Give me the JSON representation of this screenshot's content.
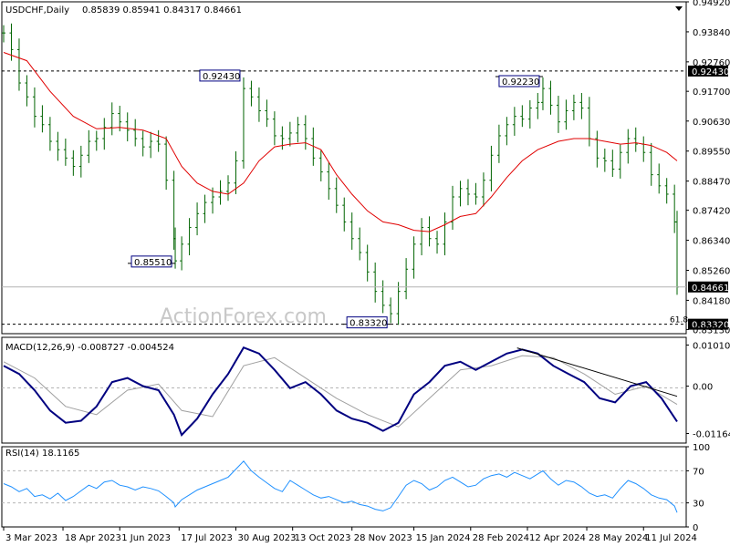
{
  "chart_data": [
    {
      "type": "candlestick",
      "panel": "price",
      "title": "USDCHF,Daily",
      "ohlc_label": "0.85839 0.85941 0.84317 0.84661",
      "watermark": "ActionForex.com",
      "ylim": [
        0.8298,
        0.9492
      ],
      "y_ticks": [
        "0.94920",
        "0.93840",
        "0.92760",
        "0.91700",
        "0.90630",
        "0.89550",
        "0.88470",
        "0.87420",
        "0.86340",
        "0.85260",
        "0.84180",
        "0.83130"
      ],
      "current_price": "0.84661",
      "current_price_color": "#000000",
      "key_levels": [
        {
          "value": "0.92430",
          "line_style": "dashed"
        },
        {
          "value": "0.83320",
          "line_style": "dashed",
          "annotation": "61.8"
        }
      ],
      "swing_labels": [
        {
          "text": "0.92430",
          "date": "2023-09-05",
          "type": "high"
        },
        {
          "text": "0.85510",
          "date": "2023-07-14",
          "type": "low"
        },
        {
          "text": "0.83320",
          "date": "2023-12-28",
          "type": "low"
        },
        {
          "text": "0.92230",
          "date": "2024-04-24",
          "type": "high"
        }
      ],
      "x_labels": [
        "3 Mar 2023",
        "18 Apr 2023",
        "1 Jun 2023",
        "17 Jul 2023",
        "30 Aug 2023",
        "13 Oct 2023",
        "28 Nov 2023",
        "15 Jan 2024",
        "28 Feb 2024",
        "12 Apr 2024",
        "28 May 2024",
        "11 Jul 2024"
      ],
      "bar_color": "#006400",
      "ma_color": "#e00000",
      "close_series": [
        [
          "2023-03-03",
          0.938
        ],
        [
          "2023-03-09",
          0.932
        ],
        [
          "2023-03-15",
          0.92
        ],
        [
          "2023-03-21",
          0.915
        ],
        [
          "2023-03-27",
          0.908
        ],
        [
          "2023-04-02",
          0.905
        ],
        [
          "2023-04-08",
          0.899
        ],
        [
          "2023-04-14",
          0.896
        ],
        [
          "2023-04-20",
          0.893
        ],
        [
          "2023-04-26",
          0.89
        ],
        [
          "2023-05-02",
          0.894
        ],
        [
          "2023-05-08",
          0.899
        ],
        [
          "2023-05-14",
          0.9
        ],
        [
          "2023-05-20",
          0.904
        ],
        [
          "2023-05-26",
          0.909
        ],
        [
          "2023-06-01",
          0.906
        ],
        [
          "2023-06-07",
          0.903
        ],
        [
          "2023-06-13",
          0.9
        ],
        [
          "2023-06-19",
          0.897
        ],
        [
          "2023-06-25",
          0.899
        ],
        [
          "2023-07-01",
          0.898
        ],
        [
          "2023-07-07",
          0.885
        ],
        [
          "2023-07-13",
          0.864
        ],
        [
          "2023-07-14",
          0.856
        ],
        [
          "2023-07-19",
          0.862
        ],
        [
          "2023-07-25",
          0.868
        ],
        [
          "2023-07-31",
          0.873
        ],
        [
          "2023-08-06",
          0.877
        ],
        [
          "2023-08-12",
          0.879
        ],
        [
          "2023-08-18",
          0.881
        ],
        [
          "2023-08-24",
          0.884
        ],
        [
          "2023-08-30",
          0.892
        ],
        [
          "2023-09-05",
          0.918
        ],
        [
          "2023-09-11",
          0.915
        ],
        [
          "2023-09-17",
          0.91
        ],
        [
          "2023-09-23",
          0.907
        ],
        [
          "2023-09-29",
          0.901
        ],
        [
          "2023-10-05",
          0.9
        ],
        [
          "2023-10-11",
          0.902
        ],
        [
          "2023-10-17",
          0.905
        ],
        [
          "2023-10-23",
          0.9
        ],
        [
          "2023-10-29",
          0.893
        ],
        [
          "2023-11-04",
          0.888
        ],
        [
          "2023-11-10",
          0.882
        ],
        [
          "2023-11-16",
          0.876
        ],
        [
          "2023-11-22",
          0.87
        ],
        [
          "2023-11-28",
          0.864
        ],
        [
          "2023-12-04",
          0.859
        ],
        [
          "2023-12-10",
          0.852
        ],
        [
          "2023-12-16",
          0.845
        ],
        [
          "2023-12-22",
          0.84
        ],
        [
          "2023-12-28",
          0.837
        ],
        [
          "2024-01-03",
          0.845
        ],
        [
          "2024-01-09",
          0.853
        ],
        [
          "2024-01-15",
          0.862
        ],
        [
          "2024-01-21",
          0.868
        ],
        [
          "2024-01-27",
          0.864
        ],
        [
          "2024-02-02",
          0.862
        ],
        [
          "2024-02-08",
          0.87
        ],
        [
          "2024-02-14",
          0.879
        ],
        [
          "2024-02-20",
          0.882
        ],
        [
          "2024-02-26",
          0.88
        ],
        [
          "2024-03-03",
          0.879
        ],
        [
          "2024-03-09",
          0.885
        ],
        [
          "2024-03-15",
          0.894
        ],
        [
          "2024-03-21",
          0.901
        ],
        [
          "2024-03-27",
          0.905
        ],
        [
          "2024-04-02",
          0.908
        ],
        [
          "2024-04-08",
          0.907
        ],
        [
          "2024-04-14",
          0.911
        ],
        [
          "2024-04-20",
          0.913
        ],
        [
          "2024-04-24",
          0.918
        ],
        [
          "2024-04-30",
          0.912
        ],
        [
          "2024-05-06",
          0.906
        ],
        [
          "2024-05-12",
          0.91
        ],
        [
          "2024-05-18",
          0.913
        ],
        [
          "2024-05-24",
          0.911
        ],
        [
          "2024-05-30",
          0.9
        ],
        [
          "2024-06-05",
          0.893
        ],
        [
          "2024-06-11",
          0.892
        ],
        [
          "2024-06-17",
          0.889
        ],
        [
          "2024-06-23",
          0.895
        ],
        [
          "2024-06-29",
          0.9
        ],
        [
          "2024-07-05",
          0.898
        ],
        [
          "2024-07-11",
          0.895
        ],
        [
          "2024-07-17",
          0.887
        ],
        [
          "2024-07-23",
          0.883
        ],
        [
          "2024-07-29",
          0.88
        ],
        [
          "2024-08-04",
          0.87
        ],
        [
          "2024-08-06",
          0.8466
        ]
      ],
      "ma_series": [
        [
          "2023-03-03",
          0.931
        ],
        [
          "2023-03-21",
          0.928
        ],
        [
          "2023-04-08",
          0.917
        ],
        [
          "2023-04-26",
          0.908
        ],
        [
          "2023-05-14",
          0.9035
        ],
        [
          "2023-06-01",
          0.904
        ],
        [
          "2023-06-19",
          0.903
        ],
        [
          "2023-07-07",
          0.9
        ],
        [
          "2023-07-19",
          0.89
        ],
        [
          "2023-07-31",
          0.884
        ],
        [
          "2023-08-12",
          0.881
        ],
        [
          "2023-08-24",
          0.88
        ],
        [
          "2023-09-05",
          0.884
        ],
        [
          "2023-09-17",
          0.892
        ],
        [
          "2023-09-29",
          0.897
        ],
        [
          "2023-10-11",
          0.898
        ],
        [
          "2023-10-23",
          0.8985
        ],
        [
          "2023-11-04",
          0.896
        ],
        [
          "2023-11-16",
          0.887
        ],
        [
          "2023-11-28",
          0.88
        ],
        [
          "2023-12-10",
          0.874
        ],
        [
          "2023-12-22",
          0.87
        ],
        [
          "2024-01-03",
          0.869
        ],
        [
          "2024-01-15",
          0.867
        ],
        [
          "2024-01-27",
          0.8665
        ],
        [
          "2024-02-08",
          0.869
        ],
        [
          "2024-02-20",
          0.872
        ],
        [
          "2024-03-03",
          0.873
        ],
        [
          "2024-03-15",
          0.879
        ],
        [
          "2024-03-27",
          0.886
        ],
        [
          "2024-04-08",
          0.892
        ],
        [
          "2024-04-20",
          0.896
        ],
        [
          "2024-05-06",
          0.899
        ],
        [
          "2024-05-18",
          0.9
        ],
        [
          "2024-05-30",
          0.9
        ],
        [
          "2024-06-11",
          0.899
        ],
        [
          "2024-06-23",
          0.898
        ],
        [
          "2024-07-05",
          0.8985
        ],
        [
          "2024-07-17",
          0.8975
        ],
        [
          "2024-07-29",
          0.895
        ],
        [
          "2024-08-06",
          0.892
        ]
      ]
    },
    {
      "type": "line",
      "panel": "macd",
      "title": "MACD(12,26,9) -0.008727 -0.004524",
      "ylim": [
        -0.014,
        0.012
      ],
      "y_ticks": [
        "0.010101",
        "0.00",
        "-0.011645"
      ],
      "macd_color": "#000080",
      "signal_color": "#a0a0a0",
      "trendline": {
        "from": [
          "2024-04-04",
          0.0094
        ],
        "to": [
          "2024-08-06",
          -0.0025
        ]
      },
      "macd_series": [
        [
          "2023-03-03",
          0.005
        ],
        [
          "2023-03-15",
          0.003
        ],
        [
          "2023-03-27",
          -0.001
        ],
        [
          "2023-04-08",
          -0.006
        ],
        [
          "2023-04-20",
          -0.009
        ],
        [
          "2023-05-02",
          -0.0085
        ],
        [
          "2023-05-14",
          -0.005
        ],
        [
          "2023-05-26",
          0.001
        ],
        [
          "2023-06-07",
          0.002
        ],
        [
          "2023-06-19",
          0.0
        ],
        [
          "2023-07-01",
          -0.001
        ],
        [
          "2023-07-13",
          -0.007
        ],
        [
          "2023-07-19",
          -0.012
        ],
        [
          "2023-07-31",
          -0.008
        ],
        [
          "2023-08-12",
          -0.002
        ],
        [
          "2023-08-24",
          0.003
        ],
        [
          "2023-09-05",
          0.0095
        ],
        [
          "2023-09-17",
          0.008
        ],
        [
          "2023-09-29",
          0.004
        ],
        [
          "2023-10-11",
          -0.0005
        ],
        [
          "2023-10-23",
          0.001
        ],
        [
          "2023-11-04",
          -0.002
        ],
        [
          "2023-11-16",
          -0.006
        ],
        [
          "2023-11-28",
          -0.008
        ],
        [
          "2023-12-10",
          -0.009
        ],
        [
          "2023-12-22",
          -0.011
        ],
        [
          "2024-01-03",
          -0.009
        ],
        [
          "2024-01-15",
          -0.002
        ],
        [
          "2024-01-27",
          0.001
        ],
        [
          "2024-02-08",
          0.005
        ],
        [
          "2024-02-20",
          0.006
        ],
        [
          "2024-03-03",
          0.004
        ],
        [
          "2024-03-15",
          0.006
        ],
        [
          "2024-03-27",
          0.008
        ],
        [
          "2024-04-08",
          0.009
        ],
        [
          "2024-04-20",
          0.008
        ],
        [
          "2024-05-02",
          0.005
        ],
        [
          "2024-05-14",
          0.003
        ],
        [
          "2024-05-26",
          0.001
        ],
        [
          "2024-06-07",
          -0.003
        ],
        [
          "2024-06-19",
          -0.004
        ],
        [
          "2024-07-01",
          0.0
        ],
        [
          "2024-07-13",
          0.001
        ],
        [
          "2024-07-25",
          -0.003
        ],
        [
          "2024-08-06",
          -0.0087
        ]
      ],
      "signal_series": [
        [
          "2023-03-03",
          0.006
        ],
        [
          "2023-03-27",
          0.002
        ],
        [
          "2023-04-20",
          -0.005
        ],
        [
          "2023-05-14",
          -0.007
        ],
        [
          "2023-06-07",
          -0.001
        ],
        [
          "2023-07-01",
          0.0005
        ],
        [
          "2023-07-19",
          -0.006
        ],
        [
          "2023-08-12",
          -0.0075
        ],
        [
          "2023-09-05",
          0.005
        ],
        [
          "2023-09-29",
          0.007
        ],
        [
          "2023-10-23",
          0.002
        ],
        [
          "2023-11-16",
          -0.003
        ],
        [
          "2023-12-10",
          -0.007
        ],
        [
          "2024-01-03",
          -0.01
        ],
        [
          "2024-01-27",
          -0.003
        ],
        [
          "2024-02-20",
          0.004
        ],
        [
          "2024-03-15",
          0.005
        ],
        [
          "2024-04-08",
          0.0075
        ],
        [
          "2024-05-02",
          0.007
        ],
        [
          "2024-05-26",
          0.003
        ],
        [
          "2024-06-19",
          -0.002
        ],
        [
          "2024-07-13",
          0.0
        ],
        [
          "2024-08-06",
          -0.0045
        ]
      ]
    },
    {
      "type": "line",
      "panel": "rsi",
      "title": "RSI(14) 18.1165",
      "ylim": [
        0,
        100
      ],
      "y_ticks": [
        "100",
        "70",
        "30",
        "0"
      ],
      "reference_levels": [
        70,
        30
      ],
      "rsi_color": "#1e90ff",
      "rsi_series": [
        [
          "2023-03-03",
          54
        ],
        [
          "2023-03-09",
          50
        ],
        [
          "2023-03-15",
          44
        ],
        [
          "2023-03-21",
          48
        ],
        [
          "2023-03-27",
          38
        ],
        [
          "2023-04-02",
          40
        ],
        [
          "2023-04-08",
          35
        ],
        [
          "2023-04-14",
          42
        ],
        [
          "2023-04-20",
          33
        ],
        [
          "2023-04-26",
          38
        ],
        [
          "2023-05-02",
          45
        ],
        [
          "2023-05-08",
          52
        ],
        [
          "2023-05-14",
          48
        ],
        [
          "2023-05-20",
          56
        ],
        [
          "2023-05-26",
          58
        ],
        [
          "2023-06-01",
          52
        ],
        [
          "2023-06-07",
          50
        ],
        [
          "2023-06-13",
          46
        ],
        [
          "2023-06-19",
          50
        ],
        [
          "2023-06-25",
          48
        ],
        [
          "2023-07-01",
          45
        ],
        [
          "2023-07-07",
          38
        ],
        [
          "2023-07-13",
          30
        ],
        [
          "2023-07-14",
          25
        ],
        [
          "2023-07-19",
          34
        ],
        [
          "2023-07-25",
          40
        ],
        [
          "2023-07-31",
          46
        ],
        [
          "2023-08-06",
          50
        ],
        [
          "2023-08-12",
          54
        ],
        [
          "2023-08-18",
          58
        ],
        [
          "2023-08-24",
          62
        ],
        [
          "2023-08-30",
          72
        ],
        [
          "2023-09-05",
          82
        ],
        [
          "2023-09-11",
          70
        ],
        [
          "2023-09-17",
          62
        ],
        [
          "2023-09-23",
          55
        ],
        [
          "2023-09-29",
          48
        ],
        [
          "2023-10-05",
          44
        ],
        [
          "2023-10-11",
          58
        ],
        [
          "2023-10-17",
          52
        ],
        [
          "2023-10-23",
          46
        ],
        [
          "2023-10-29",
          40
        ],
        [
          "2023-11-04",
          36
        ],
        [
          "2023-11-10",
          38
        ],
        [
          "2023-11-16",
          34
        ],
        [
          "2023-11-22",
          30
        ],
        [
          "2023-11-28",
          32
        ],
        [
          "2023-12-04",
          28
        ],
        [
          "2023-12-10",
          26
        ],
        [
          "2023-12-16",
          22
        ],
        [
          "2023-12-22",
          20
        ],
        [
          "2023-12-28",
          24
        ],
        [
          "2024-01-03",
          38
        ],
        [
          "2024-01-09",
          52
        ],
        [
          "2024-01-15",
          58
        ],
        [
          "2024-01-21",
          54
        ],
        [
          "2024-01-27",
          46
        ],
        [
          "2024-02-02",
          50
        ],
        [
          "2024-02-08",
          58
        ],
        [
          "2024-02-14",
          62
        ],
        [
          "2024-02-20",
          56
        ],
        [
          "2024-02-26",
          50
        ],
        [
          "2024-03-03",
          52
        ],
        [
          "2024-03-09",
          60
        ],
        [
          "2024-03-15",
          64
        ],
        [
          "2024-03-21",
          66
        ],
        [
          "2024-03-27",
          62
        ],
        [
          "2024-04-02",
          68
        ],
        [
          "2024-04-08",
          64
        ],
        [
          "2024-04-14",
          60
        ],
        [
          "2024-04-20",
          66
        ],
        [
          "2024-04-24",
          70
        ],
        [
          "2024-04-30",
          60
        ],
        [
          "2024-05-06",
          52
        ],
        [
          "2024-05-12",
          58
        ],
        [
          "2024-05-18",
          56
        ],
        [
          "2024-05-24",
          50
        ],
        [
          "2024-05-30",
          42
        ],
        [
          "2024-06-05",
          38
        ],
        [
          "2024-06-11",
          40
        ],
        [
          "2024-06-17",
          36
        ],
        [
          "2024-06-23",
          48
        ],
        [
          "2024-06-29",
          58
        ],
        [
          "2024-07-05",
          54
        ],
        [
          "2024-07-11",
          48
        ],
        [
          "2024-07-17",
          40
        ],
        [
          "2024-07-23",
          36
        ],
        [
          "2024-07-29",
          34
        ],
        [
          "2024-08-04",
          26
        ],
        [
          "2024-08-06",
          18
        ]
      ]
    }
  ]
}
